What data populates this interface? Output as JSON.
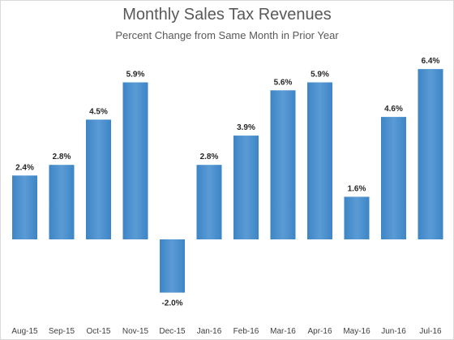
{
  "chart_data": {
    "type": "bar",
    "title": "Monthly Sales Tax Revenues",
    "subtitle": "Percent Change from Same Month in Prior Year",
    "categories": [
      "Aug-15",
      "Sep-15",
      "Oct-15",
      "Nov-15",
      "Dec-15",
      "Jan-16",
      "Feb-16",
      "Mar-16",
      "Apr-16",
      "May-16",
      "Jun-16",
      "Jul-16"
    ],
    "values": [
      2.4,
      2.8,
      4.5,
      5.9,
      -2.0,
      2.8,
      3.9,
      5.6,
      5.9,
      1.6,
      4.6,
      6.4
    ],
    "value_labels": [
      "2.4%",
      "2.8%",
      "4.5%",
      "5.9%",
      "-2.0%",
      "2.8%",
      "3.9%",
      "5.6%",
      "5.9%",
      "1.6%",
      "4.6%",
      "6.4%"
    ],
    "xlabel": "",
    "ylabel": "",
    "ylim": [
      -2.0,
      6.4
    ],
    "grid": false,
    "legend": "none",
    "bar_color": "#5b9bd5",
    "bar_color_dark": "#3d85c6"
  }
}
